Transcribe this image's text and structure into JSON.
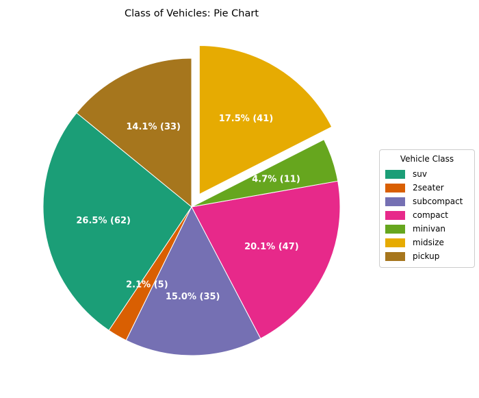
{
  "chart_data": {
    "type": "pie",
    "title": "Class of Vehicles: Pie Chart",
    "categories": [
      "suv",
      "2seater",
      "subcompact",
      "compact",
      "minivan",
      "midsize",
      "pickup"
    ],
    "values": [
      62,
      5,
      35,
      47,
      11,
      41,
      33
    ],
    "slice_labels": [
      "26.5% (62)",
      "2.1% (5)",
      "15.0% (35)",
      "20.1% (47)",
      "4.7% (11)",
      "17.5% (41)",
      "14.1% (33)"
    ],
    "colors": [
      "#1b9e77",
      "#d95f02",
      "#7570b3",
      "#e7298a",
      "#66a61e",
      "#e6ab02",
      "#a6761d"
    ],
    "explode": [
      0,
      0,
      0,
      0,
      0,
      0.1,
      0
    ],
    "start_angle_deg": 140.77,
    "direction": "counterclockwise",
    "slice_label_color": "#ffffff",
    "slice_edge_color": "#ffffff",
    "legend": {
      "title": "Vehicle Class",
      "entries": [
        "suv",
        "2seater",
        "subcompact",
        "compact",
        "minivan",
        "midsize",
        "pickup"
      ],
      "position": "right"
    }
  }
}
